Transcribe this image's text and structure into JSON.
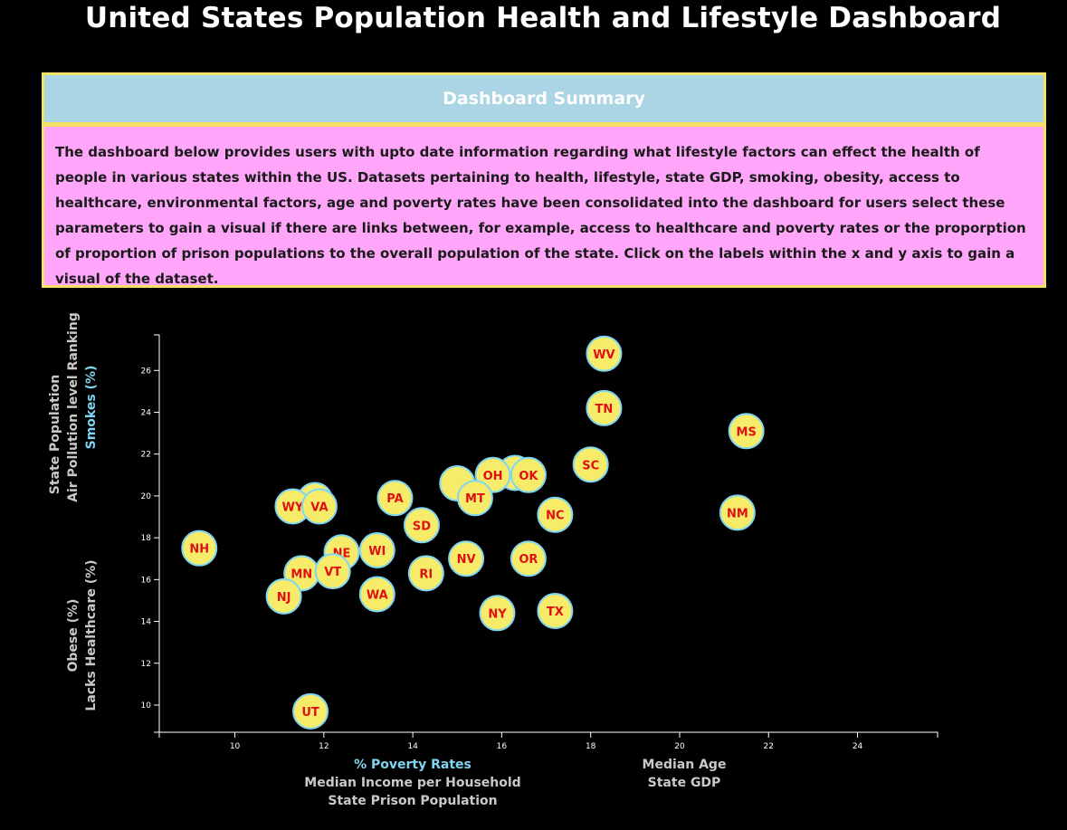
{
  "title": "United States Population Health and Lifestyle Dashboard",
  "summary": {
    "heading": "Dashboard Summary",
    "text": "The dashboard below provides users with upto date information regarding what lifestyle factors can effect the health of people in various states within the US. Datasets pertaining to health, lifestyle, state GDP, smoking, obesity, access to healthcare, environmental factors, age and poverty rates have been consolidated into the dashboard for users select these parameters to gain a visual if there are links between, for example, access to healthcare and poverty rates or the proporption of proportion of prison populations to the overall population of the state. Click on the labels within the x and y axis to gain a visual of the dataset."
  },
  "colors": {
    "background": "#000000",
    "circle_fill": "#f6ec6a",
    "circle_stroke": "#7fd6f2",
    "state_text": "#e01010",
    "active_label": "#7fd6f2",
    "inactive_label": "#c9c9c9",
    "summary_header_bg": "#abd5e4",
    "summary_body_bg": "#ffa6fb",
    "summary_border": "#f5e06a"
  },
  "chart_data": {
    "type": "scatter",
    "x_axis_labels": [
      {
        "text": "% Poverty Rates",
        "active": true
      },
      {
        "text": "Median Income per Household",
        "active": false
      },
      {
        "text": "State Prison Population",
        "active": false
      },
      {
        "text": "Median Age",
        "active": false
      },
      {
        "text": "State GDP",
        "active": false
      }
    ],
    "y_axis_labels": [
      {
        "text": "Smokes (%)",
        "active": true
      },
      {
        "text": "Air Pollution level Ranking",
        "active": false
      },
      {
        "text": "State Population",
        "active": false
      },
      {
        "text": "Lacks Healthcare (%)",
        "active": false
      },
      {
        "text": "Obese (%)",
        "active": false
      }
    ],
    "xlim": [
      8.3,
      25.8
    ],
    "ylim": [
      8.7,
      27.7
    ],
    "x_ticks": [
      10,
      12,
      14,
      16,
      18,
      20,
      22,
      24
    ],
    "y_ticks": [
      10,
      12,
      14,
      16,
      18,
      20,
      22,
      24,
      26
    ],
    "points": [
      {
        "abbr": "",
        "x": 11.8,
        "y": 19.8
      },
      {
        "abbr": "",
        "x": 15.0,
        "y": 20.6
      },
      {
        "abbr": "",
        "x": 16.3,
        "y": 21.1
      },
      {
        "abbr": "WV",
        "x": 18.3,
        "y": 26.8
      },
      {
        "abbr": "TN",
        "x": 18.3,
        "y": 24.2
      },
      {
        "abbr": "MS",
        "x": 21.5,
        "y": 23.1
      },
      {
        "abbr": "SC",
        "x": 18.0,
        "y": 21.5
      },
      {
        "abbr": "OH",
        "x": 15.8,
        "y": 21.0
      },
      {
        "abbr": "OK",
        "x": 16.6,
        "y": 21.0
      },
      {
        "abbr": "PA",
        "x": 13.6,
        "y": 19.9
      },
      {
        "abbr": "MT",
        "x": 15.4,
        "y": 19.9
      },
      {
        "abbr": "WY",
        "x": 11.3,
        "y": 19.5
      },
      {
        "abbr": "VA",
        "x": 11.9,
        "y": 19.5
      },
      {
        "abbr": "NC",
        "x": 17.2,
        "y": 19.1
      },
      {
        "abbr": "NM",
        "x": 21.3,
        "y": 19.2
      },
      {
        "abbr": "SD",
        "x": 14.2,
        "y": 18.6
      },
      {
        "abbr": "NH",
        "x": 9.2,
        "y": 17.5
      },
      {
        "abbr": "NE",
        "x": 12.4,
        "y": 17.3
      },
      {
        "abbr": "WI",
        "x": 13.2,
        "y": 17.4
      },
      {
        "abbr": "NV",
        "x": 15.2,
        "y": 17.0
      },
      {
        "abbr": "OR",
        "x": 16.6,
        "y": 17.0
      },
      {
        "abbr": "MN",
        "x": 11.5,
        "y": 16.3
      },
      {
        "abbr": "VT",
        "x": 12.2,
        "y": 16.4
      },
      {
        "abbr": "RI",
        "x": 14.3,
        "y": 16.3
      },
      {
        "abbr": "NJ",
        "x": 11.1,
        "y": 15.2
      },
      {
        "abbr": "WA",
        "x": 13.2,
        "y": 15.3
      },
      {
        "abbr": "NY",
        "x": 15.9,
        "y": 14.4
      },
      {
        "abbr": "TX",
        "x": 17.2,
        "y": 14.5
      },
      {
        "abbr": "UT",
        "x": 11.7,
        "y": 9.7
      }
    ]
  }
}
